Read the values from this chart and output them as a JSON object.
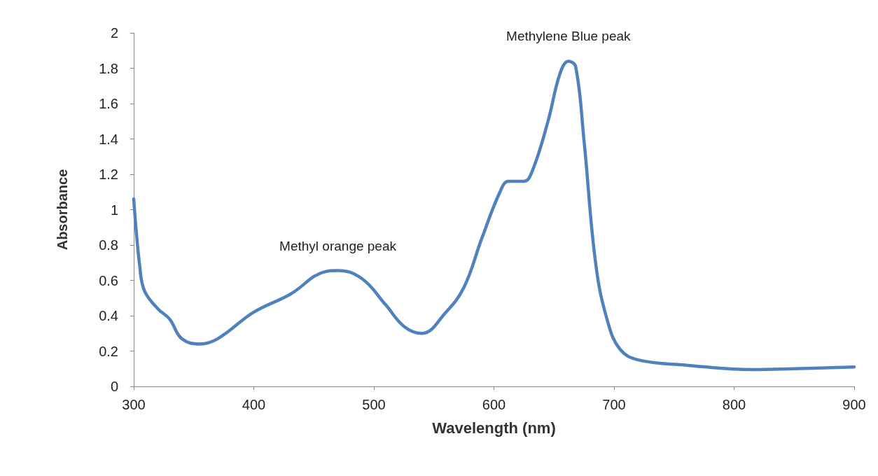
{
  "chart_data": {
    "type": "line",
    "xlabel": "Wavelength (nm)",
    "ylabel": "Absorbance",
    "x": [
      300,
      305,
      309,
      320,
      330,
      340,
      355,
      370,
      400,
      430,
      460,
      470,
      490,
      510,
      525,
      540,
      560,
      575,
      590,
      605,
      612,
      625,
      632,
      645,
      655,
      662,
      668,
      675,
      685,
      695,
      705,
      720,
      760,
      815,
      850,
      900
    ],
    "series": [
      {
        "color": "#4f81bd",
        "values": [
          1.06,
          0.68,
          0.54,
          0.44,
          0.38,
          0.27,
          0.24,
          0.27,
          0.42,
          0.52,
          0.65,
          0.655,
          0.61,
          0.46,
          0.34,
          0.3,
          0.42,
          0.56,
          0.84,
          1.1,
          1.16,
          1.16,
          1.22,
          1.5,
          1.77,
          1.84,
          1.81,
          1.39,
          0.68,
          0.36,
          0.21,
          0.15,
          0.12,
          0.095,
          0.1,
          0.11
        ]
      }
    ],
    "xlim": [
      300,
      900
    ],
    "xticks": [
      300,
      400,
      500,
      600,
      700,
      800,
      900
    ],
    "ylim": [
      0,
      2
    ],
    "yticks": [
      0,
      0.2,
      0.4,
      0.6,
      0.8,
      1,
      1.2,
      1.4,
      1.6,
      1.8,
      2
    ],
    "grid": false,
    "marker": "none",
    "line_style": "solid",
    "annotations": [
      {
        "text": "Methyl orange peak",
        "x": 470,
        "y": 0.655
      },
      {
        "text": "Methylene Blue peak",
        "x": 662,
        "y": 1.84
      }
    ]
  }
}
